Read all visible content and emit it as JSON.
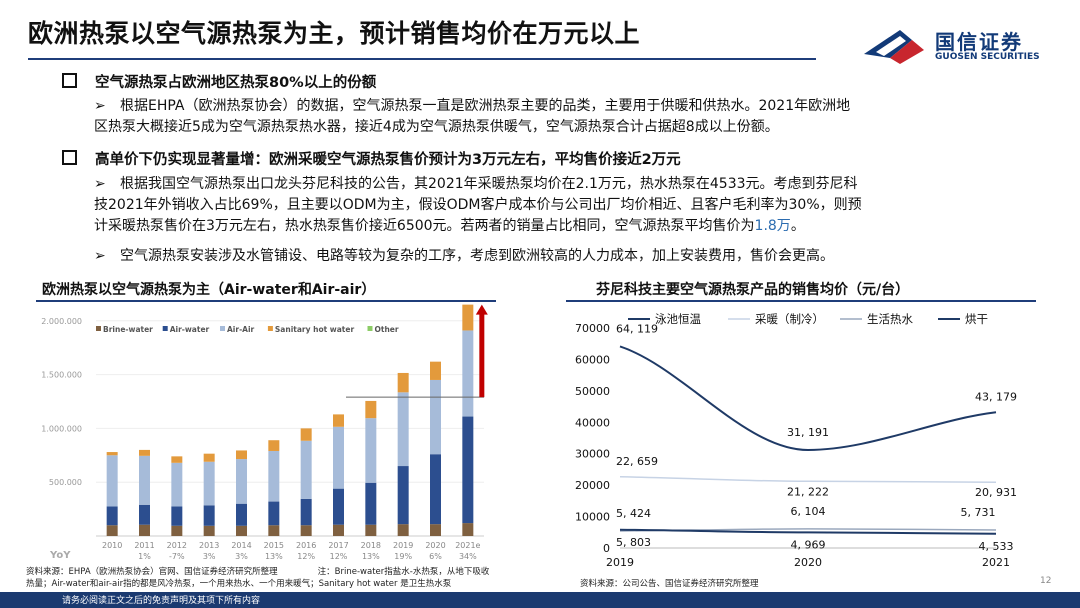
{
  "title": "欧洲热泵以空气源热泵为主，预计销售均价在万元以上",
  "logo": {
    "cn": "国信证券",
    "en": "GUOSEN SECURITIES"
  },
  "sections": [
    {
      "heading": "空气源热泵占欧洲地区热泵80%以上的份额",
      "paras": [
        {
          "lines": [
            "根据EHPA（欧洲热泵协会）的数据，空气源热泵一直是欧洲热泵主要的品类，主要用于供暖和供热水。2021年欧洲地",
            "区热泵大概接近5成为空气源热泵热水器，接近4成为空气源热泵供暖气，空气源热泵合计占据超8成以上份额。"
          ]
        }
      ]
    },
    {
      "heading": "高单价下仍实现显著量增：欧洲采暖空气源热泵售价预计为3万元左右，平均售价接近2万元",
      "paras": [
        {
          "lines": [
            "根据我国空气源热泵出口龙头芬尼科技的公告，其2021年采暖热泵均价在2.1万元，热水热泵在4533元。考虑到芬尼科",
            "技2021年外销收入占比69%，且主要以ODM为主，假设ODM客户成本价与公司出厂均价相近、且客户毛利率为30%，则预",
            "计采暖热泵售价在3万元左右，热水热泵售价接近6500元。若两者的销量占比相同，空气源热泵平均售价为"
          ],
          "highlight": "1.8万",
          "tail": "。"
        },
        {
          "lines": [
            "空气源热泵安装涉及水管铺设、电路等较为复杂的工序，考虑到欧洲较高的人力成本，加上安装费用，售价会更高。"
          ]
        }
      ]
    }
  ],
  "left_panel": {
    "title": "欧洲热泵以空气源热泵为主（Air-water和Air-air）",
    "source_lines": [
      "资料来源：EHPA（欧洲热泵协会）官网、国信证券经济研究所整理",
      "注：Brine-water指盐水-水热泵，从地下吸收",
      "热量；Air-water和air-air指的都是风冷热泵，一个用来热水、一个用来暖气；Sanitary hot water 是卫生热水泵"
    ]
  },
  "right_panel": {
    "title": "芬尼科技主要空气源热泵产品的销售均价（元/台）",
    "source": "资料来源：公司公告、国信证券经济研究所整理"
  },
  "footer": "请务必阅读正文之后的免责声明及其项下所有内容",
  "page_number": "12",
  "chart_data": [
    {
      "type": "bar",
      "stacked": true,
      "categories": [
        "2010",
        "2011",
        "2012",
        "2013",
        "2014",
        "2015",
        "2016",
        "2017",
        "2018",
        "2019",
        "2020",
        "2021e"
      ],
      "yoy_label": "YoY",
      "yoy": [
        "",
        "1%",
        "-7%",
        "3%",
        "3%",
        "13%",
        "12%",
        "12%",
        "13%",
        "19%",
        "6%",
        "34%"
      ],
      "series": [
        {
          "name": "Brine-water",
          "color": "#7f6040",
          "values": [
            100000,
            105000,
            95000,
            95000,
            95000,
            100000,
            100000,
            105000,
            105000,
            110000,
            110000,
            120000
          ]
        },
        {
          "name": "Air-water",
          "color": "#2c4e8f",
          "values": [
            175000,
            185000,
            180000,
            190000,
            205000,
            220000,
            245000,
            335000,
            390000,
            540000,
            650000,
            990000
          ]
        },
        {
          "name": "Air-Air",
          "color": "#a6bbd9",
          "values": [
            475000,
            455000,
            405000,
            405000,
            415000,
            470000,
            540000,
            575000,
            600000,
            685000,
            690000,
            800000
          ]
        },
        {
          "name": "Sanitary hot water",
          "color": "#e39a3c",
          "values": [
            30000,
            55000,
            60000,
            75000,
            80000,
            100000,
            115000,
            115000,
            160000,
            180000,
            170000,
            240000
          ]
        },
        {
          "name": "Other",
          "color": "#8ccc66",
          "values": [
            0,
            0,
            0,
            0,
            0,
            0,
            0,
            0,
            0,
            0,
            0,
            0
          ]
        }
      ],
      "yticks": [
        "500.000",
        "1.000.000",
        "1.500.000",
        "2.000.000"
      ],
      "ylim": [
        0,
        2100000
      ]
    },
    {
      "type": "line",
      "x": [
        "2019",
        "2020",
        "2021"
      ],
      "ylim": [
        0,
        70000
      ],
      "yticks": [
        "0",
        "10000",
        "20000",
        "30000",
        "40000",
        "50000",
        "60000",
        "70000"
      ],
      "series": [
        {
          "name": "泳池恒温",
          "color": "#1f3a66",
          "width": 2,
          "values": [
            64119,
            31191,
            43179
          ],
          "labels": [
            "64, 119",
            "31, 191",
            "43, 179"
          ]
        },
        {
          "name": "采暖（制冷）",
          "color": "#c7d3e5",
          "width": 1.5,
          "values": [
            22659,
            21222,
            20931
          ],
          "labels": [
            "22, 659",
            "21, 222",
            "20, 931"
          ]
        },
        {
          "name": "生活热水",
          "color": "#9aa8bd",
          "width": 1.5,
          "values": [
            5424,
            6104,
            5731
          ],
          "labels": [
            "5, 424",
            "6, 104",
            "5, 731"
          ]
        },
        {
          "name": "烘干",
          "color": "#1f3a66",
          "width": 2,
          "values": [
            5803,
            4969,
            4533
          ],
          "labels": [
            "5, 803",
            "4, 969",
            "4, 533"
          ]
        }
      ]
    }
  ]
}
